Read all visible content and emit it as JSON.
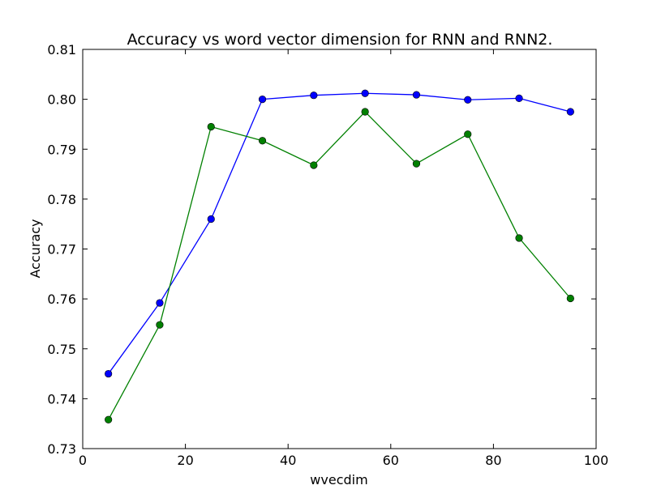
{
  "chart_data": {
    "type": "line",
    "title": "Accuracy vs word vector dimension for RNN and RNN2.",
    "xlabel": "wvecdim",
    "ylabel": "Accuracy",
    "xlim": [
      0,
      100
    ],
    "ylim": [
      0.73,
      0.81
    ],
    "xticks": [
      0,
      20,
      40,
      60,
      80,
      100
    ],
    "xtick_labels": [
      "0",
      "20",
      "40",
      "60",
      "80",
      "100"
    ],
    "yticks": [
      0.73,
      0.74,
      0.75,
      0.76,
      0.77,
      0.78,
      0.79,
      0.8,
      0.81
    ],
    "ytick_labels": [
      "0.73",
      "0.74",
      "0.75",
      "0.76",
      "0.77",
      "0.78",
      "0.79",
      "0.80",
      "0.81"
    ],
    "grid": false,
    "legend": "none",
    "x": [
      5,
      15,
      25,
      35,
      45,
      55,
      65,
      75,
      85,
      95
    ],
    "series": [
      {
        "color": "#0000ff",
        "values": [
          0.745,
          0.7592,
          0.776,
          0.8,
          0.8008,
          0.8012,
          0.8009,
          0.7999,
          0.8002,
          0.7975
        ]
      },
      {
        "color": "#008000",
        "values": [
          0.7358,
          0.7548,
          0.7945,
          0.7917,
          0.7868,
          0.7975,
          0.7871,
          0.793,
          0.7722,
          0.7601
        ]
      }
    ]
  }
}
